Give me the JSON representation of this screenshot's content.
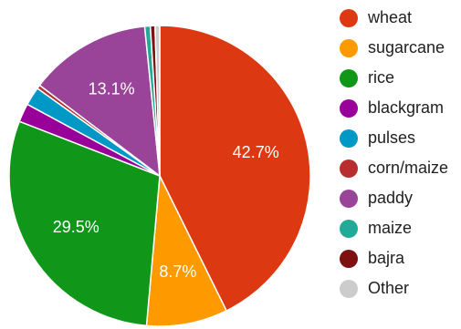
{
  "chart_data": {
    "type": "pie",
    "title": "",
    "start_angle_deg": 0,
    "direction": "clockwise",
    "slices": [
      {
        "label": "wheat",
        "value": 42.7,
        "color": "#dc3912",
        "display": "42.7%"
      },
      {
        "label": "sugarcane",
        "value": 8.7,
        "color": "#ff9900",
        "display": "8.7%"
      },
      {
        "label": "rice",
        "value": 29.5,
        "color": "#109618",
        "display": "29.5%"
      },
      {
        "label": "blackgram",
        "value": 2.0,
        "color": "#990099",
        "display": ""
      },
      {
        "label": "pulses",
        "value": 2.0,
        "color": "#0099c6",
        "display": ""
      },
      {
        "label": "corn/maize",
        "value": 0.4,
        "color": "#b82e2e",
        "display": ""
      },
      {
        "label": "paddy",
        "value": 13.1,
        "color": "#994499",
        "display": "13.1%"
      },
      {
        "label": "maize",
        "value": 0.6,
        "color": "#22aa99",
        "display": ""
      },
      {
        "label": "bajra",
        "value": 0.5,
        "color": "#7f1010",
        "display": ""
      },
      {
        "label": "Other",
        "value": 0.5,
        "color": "#cccccc",
        "display": ""
      }
    ],
    "legend_position": "right"
  }
}
